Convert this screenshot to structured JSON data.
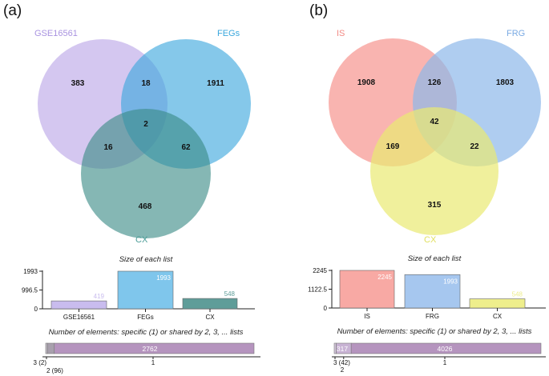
{
  "panels": [
    {
      "label": "(a)",
      "sets": [
        {
          "name": "GSE16561",
          "color": "#b9a4e6",
          "label_color": "#a993e0"
        },
        {
          "name": "FEGs",
          "color": "#3aa7dd",
          "label_color": "#3aa7dd"
        },
        {
          "name": "CX",
          "color": "#3a8a86",
          "label_color": "#4b9c97"
        }
      ],
      "regions": {
        "a_only": "383",
        "b_only": "1911",
        "c_only": "468",
        "ab": "18",
        "ac": "16",
        "bc": "62",
        "abc": "2"
      },
      "size_title": "Size of each list",
      "shared_title": "Number of elements: specific (1) or shared by 2, 3, ... lists",
      "shared_bar": {
        "segments": [
          {
            "label": "3 (2)",
            "value": 2,
            "color": "#c7c0cc",
            "text": ""
          },
          {
            "label": "2 (96)",
            "value": 96,
            "color": "#a8a0ad",
            "text": ""
          },
          {
            "label": "1",
            "value": 2762,
            "color": "#b594be",
            "text": "2762"
          }
        ]
      }
    },
    {
      "label": "(b)",
      "sets": [
        {
          "name": "IS",
          "color": "#f7948f",
          "label_color": "#f28a84"
        },
        {
          "name": "FRG",
          "color": "#8db8ea",
          "label_color": "#7aaae3"
        },
        {
          "name": "CX",
          "color": "#e9ea72",
          "label_color": "#e0df5e"
        }
      ],
      "regions": {
        "a_only": "1908",
        "b_only": "1803",
        "c_only": "315",
        "ab": "126",
        "ac": "169",
        "bc": "22",
        "abc": "42"
      },
      "size_title": "Size of each list",
      "shared_title": "Number of elements: specific (1) or shared by 2, 3, ... lists",
      "shared_bar": {
        "segments": [
          {
            "label": "3 (42)",
            "value": 42,
            "color": "#d4c6dc",
            "text": ""
          },
          {
            "label": "2",
            "value": 317,
            "color": "#c8b3d4",
            "text": "317"
          },
          {
            "label": "1",
            "value": 4026,
            "color": "#b594be",
            "text": "4026"
          }
        ]
      }
    }
  ],
  "chart_data": [
    {
      "type": "bar",
      "title": "Size of each list",
      "categories": [
        "GSE16561",
        "FEGs",
        "CX"
      ],
      "values": [
        419,
        1993,
        548
      ],
      "bar_colors": [
        "#c9bcee",
        "#7fc6ec",
        "#5f9d99"
      ],
      "ylim": [
        0,
        1993
      ],
      "yticks": [
        "1993",
        "996.5",
        "0"
      ]
    },
    {
      "type": "bar",
      "title": "Size of each list",
      "categories": [
        "IS",
        "FRG",
        "CX"
      ],
      "values": [
        2245,
        1993,
        548
      ],
      "bar_colors": [
        "#f8a9a4",
        "#a6c7ef",
        "#eeee8c"
      ],
      "ylim": [
        0,
        2245
      ],
      "yticks": [
        "2245",
        "1122.5",
        "0"
      ]
    }
  ]
}
